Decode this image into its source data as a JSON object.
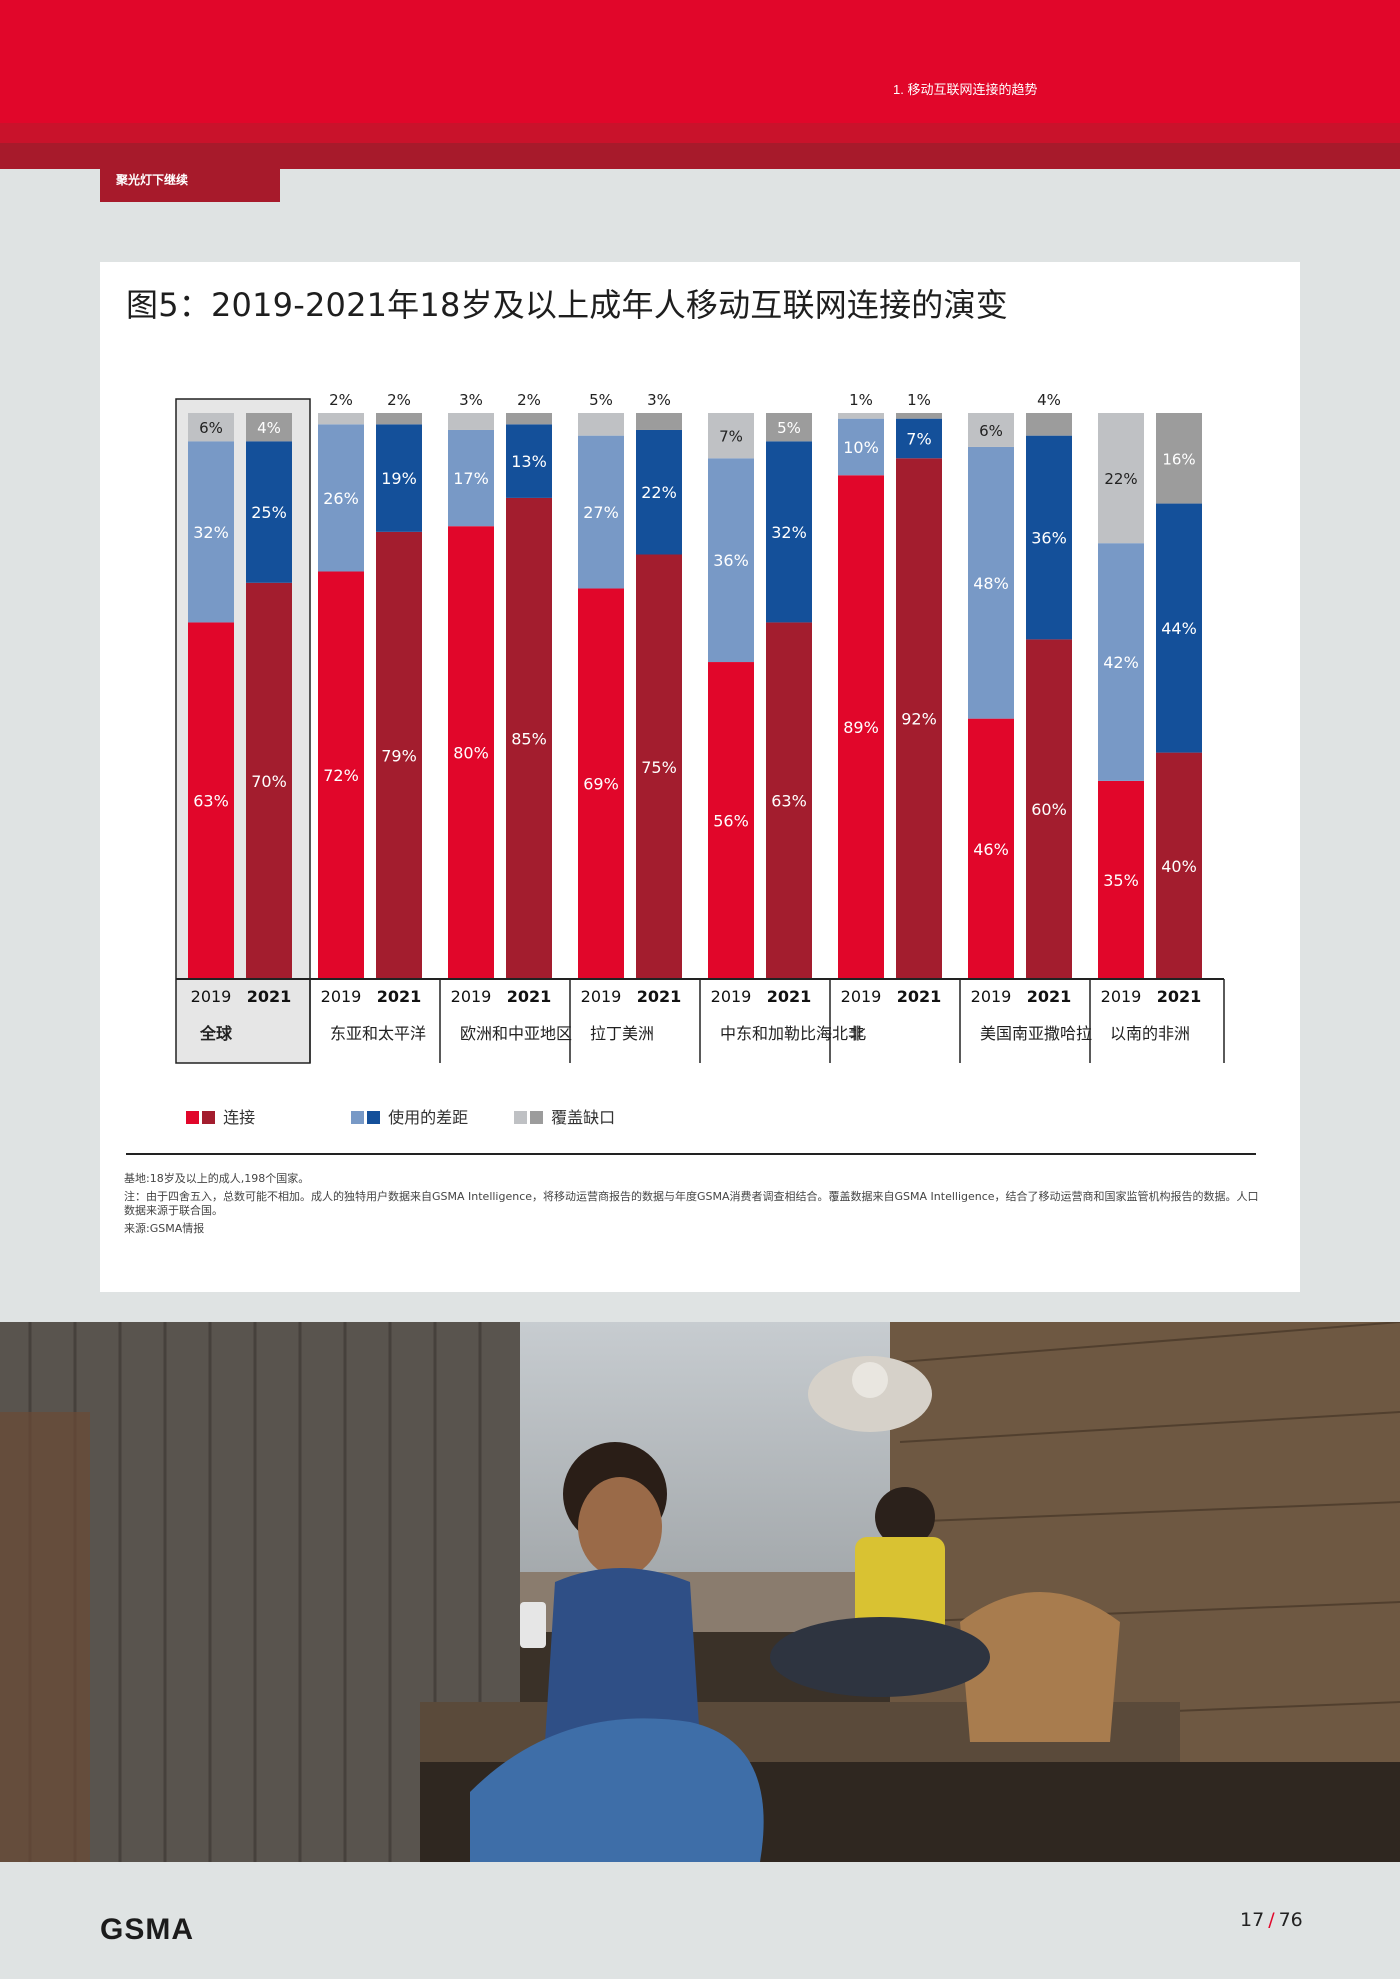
{
  "header": {
    "section_label": "1. 移动互联网连接的趋势",
    "sub_tab": "聚光灯下继续"
  },
  "figure": {
    "title": "图5：2019-2021年18岁及以上成年人移动互联网连接的演变",
    "legend": [
      {
        "label": "连接",
        "colors": [
          "#e1062a",
          "#a31d2e"
        ]
      },
      {
        "label": "使用的差距",
        "colors": [
          "#7899c6",
          "#14509a"
        ]
      },
      {
        "label": "覆盖缺口",
        "colors": [
          "#bfc1c4",
          "#9c9c9c"
        ]
      }
    ],
    "notes": [
      "基地:18岁及以上的成人,198个国家。",
      "注：由于四舍五入，总数可能不相加。成人的独特用户数据来自GSMA Intelligence，将移动运营商报告的数据与年度GSMA消费者调查相结合。覆盖数据来自GSMA Intelligence，结合了移动运营商和国家监管机构报告的数据。人口数据来源于联合国。",
      "来源:GSMA情报"
    ]
  },
  "chart_data": {
    "type": "bar",
    "stacked": true,
    "ylim": [
      0,
      100
    ],
    "segment_order": [
      "连接",
      "使用的差距",
      "覆盖缺口"
    ],
    "colors": {
      "connected": [
        "#e1062a",
        "#a31d2e"
      ],
      "usage_gap": [
        "#7899c6",
        "#14509a"
      ],
      "coverage_gap": [
        "#bfc1c4",
        "#9c9c9c"
      ]
    },
    "groups": [
      {
        "region": "全球",
        "years": [
          "2019",
          "2021"
        ],
        "connected": [
          63,
          70
        ],
        "usage_gap": [
          32,
          25
        ],
        "coverage_gap": [
          6,
          4
        ],
        "highlighted": true
      },
      {
        "region": "东亚和太平洋",
        "years": [
          "2019",
          "2021"
        ],
        "connected": [
          72,
          79
        ],
        "usage_gap": [
          26,
          19
        ],
        "coverage_gap": [
          2,
          2
        ]
      },
      {
        "region": "欧洲和中亚地区",
        "years": [
          "2019",
          "2021"
        ],
        "connected": [
          80,
          85
        ],
        "usage_gap": [
          17,
          13
        ],
        "coverage_gap": [
          3,
          2
        ]
      },
      {
        "region": "拉丁美洲",
        "years": [
          "2019",
          "2021"
        ],
        "connected": [
          69,
          75
        ],
        "usage_gap": [
          27,
          22
        ],
        "coverage_gap": [
          5,
          3
        ]
      },
      {
        "region": "中东和加勒比海北非",
        "years": [
          "2019",
          "2021"
        ],
        "connected": [
          56,
          63
        ],
        "usage_gap": [
          36,
          32
        ],
        "coverage_gap": [
          7,
          5
        ]
      },
      {
        "region": "北",
        "years": [
          "2019",
          "2021"
        ],
        "connected": [
          89,
          92
        ],
        "usage_gap": [
          10,
          7
        ],
        "coverage_gap": [
          1,
          1
        ]
      },
      {
        "region": "美国南亚撒哈拉",
        "years": [
          "2019",
          "2021"
        ],
        "connected": [
          46,
          60
        ],
        "usage_gap": [
          48,
          36
        ],
        "coverage_gap": [
          6,
          4
        ]
      },
      {
        "region": "以南的非洲",
        "years": [
          "2019",
          "2021"
        ],
        "connected": [
          35,
          40
        ],
        "usage_gap": [
          42,
          44
        ],
        "coverage_gap": [
          22,
          16
        ]
      }
    ]
  },
  "footer": {
    "logo": "GSMA",
    "page_current": "17",
    "page_total": "76"
  }
}
